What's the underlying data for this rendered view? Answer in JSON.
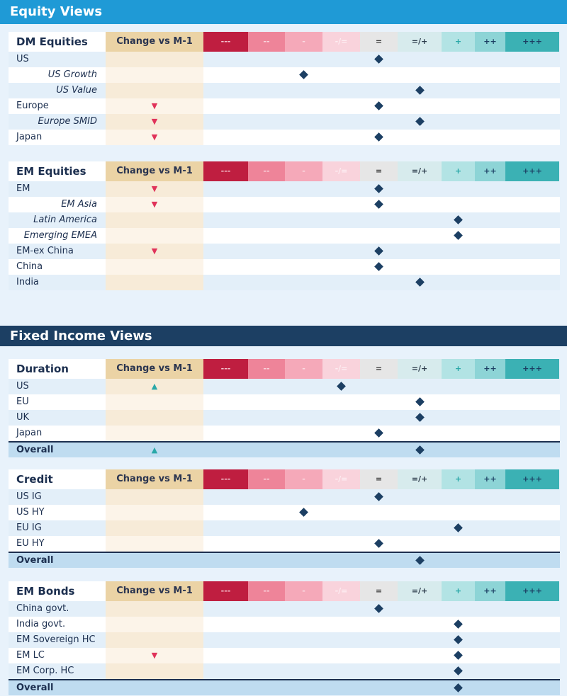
{
  "banners": {
    "equity": "Equity Views",
    "fixed_income": "Fixed Income Views"
  },
  "change_header": "Change vs M-1",
  "scale": [
    {
      "label": "---",
      "bg": "#bf1e40",
      "fg": "#f3c4cf"
    },
    {
      "label": "--",
      "bg": "#ee8499",
      "fg": "#f9d5dd"
    },
    {
      "label": "-",
      "bg": "#f5a9b9",
      "fg": "#fbdbe2"
    },
    {
      "label": "-/=",
      "bg": "#f9d3dc",
      "fg": "#fdeef2"
    },
    {
      "label": "=",
      "bg": "#e6e6e6",
      "fg": "#3a3a3a"
    },
    {
      "label": "=/+",
      "bg": "#d7ebed",
      "fg": "#2b3a4a"
    },
    {
      "label": "+",
      "bg": "#b2e3e4",
      "fg": "#2aa8a8"
    },
    {
      "label": "++",
      "bg": "#8dd4d6",
      "fg": "#1c3f63"
    },
    {
      "label": "+++",
      "bg": "#3bb1b4",
      "fg": "#1c3f63"
    }
  ],
  "sections": [
    {
      "title": "DM Equities",
      "rows": [
        {
          "name": "US",
          "italic": false,
          "change": "",
          "view": "="
        },
        {
          "name": "US Growth",
          "italic": true,
          "change": "",
          "view": "-"
        },
        {
          "name": "US Value",
          "italic": true,
          "change": "",
          "view": "=/+"
        },
        {
          "name": "Europe",
          "italic": false,
          "change": "down",
          "view": "="
        },
        {
          "name": "Europe SMID",
          "italic": true,
          "change": "down",
          "view": "=/+"
        },
        {
          "name": "Japan",
          "italic": false,
          "change": "down",
          "view": "="
        }
      ]
    },
    {
      "title": "EM Equities",
      "rows": [
        {
          "name": "EM",
          "italic": false,
          "change": "down",
          "view": "="
        },
        {
          "name": "EM Asia",
          "italic": true,
          "change": "down",
          "view": "="
        },
        {
          "name": "Latin America",
          "italic": true,
          "change": "",
          "view": "+"
        },
        {
          "name": "Emerging EMEA",
          "italic": true,
          "change": "",
          "view": "+"
        },
        {
          "name": "EM-ex China",
          "italic": false,
          "change": "down",
          "view": "="
        },
        {
          "name": "China",
          "italic": false,
          "change": "",
          "view": "="
        },
        {
          "name": "India",
          "italic": false,
          "change": "",
          "view": "=/+"
        }
      ]
    },
    {
      "title": "Duration",
      "rows": [
        {
          "name": "US",
          "italic": false,
          "change": "up",
          "view": "-/="
        },
        {
          "name": "EU",
          "italic": false,
          "change": "",
          "view": "=/+"
        },
        {
          "name": "UK",
          "italic": false,
          "change": "",
          "view": "=/+"
        },
        {
          "name": "Japan",
          "italic": false,
          "change": "",
          "view": "="
        },
        {
          "name": "Overall",
          "overall": true,
          "change": "up",
          "view": "=/+"
        }
      ]
    },
    {
      "title": "Credit",
      "rows": [
        {
          "name": "US IG",
          "italic": false,
          "change": "",
          "view": "="
        },
        {
          "name": "US HY",
          "italic": false,
          "change": "",
          "view": "-"
        },
        {
          "name": "EU IG",
          "italic": false,
          "change": "",
          "view": "+"
        },
        {
          "name": "EU HY",
          "italic": false,
          "change": "",
          "view": "="
        },
        {
          "name": "Overall",
          "overall": true,
          "change": "",
          "view": "=/+"
        }
      ]
    },
    {
      "title": "EM Bonds",
      "rows": [
        {
          "name": "China govt.",
          "italic": false,
          "change": "",
          "view": "="
        },
        {
          "name": "India govt.",
          "italic": false,
          "change": "",
          "view": "+"
        },
        {
          "name": "EM Sovereign HC",
          "italic": false,
          "change": "",
          "view": "+"
        },
        {
          "name": "EM LC",
          "italic": false,
          "change": "down",
          "view": "+"
        },
        {
          "name": "EM Corp. HC",
          "italic": false,
          "change": "",
          "view": "+"
        },
        {
          "name": "Overall",
          "overall": true,
          "change": "",
          "view": "+"
        }
      ]
    }
  ],
  "icons": {
    "down": "triangle-down-red",
    "up": "triangle-up-teal",
    "view": "diamond-navy"
  }
}
